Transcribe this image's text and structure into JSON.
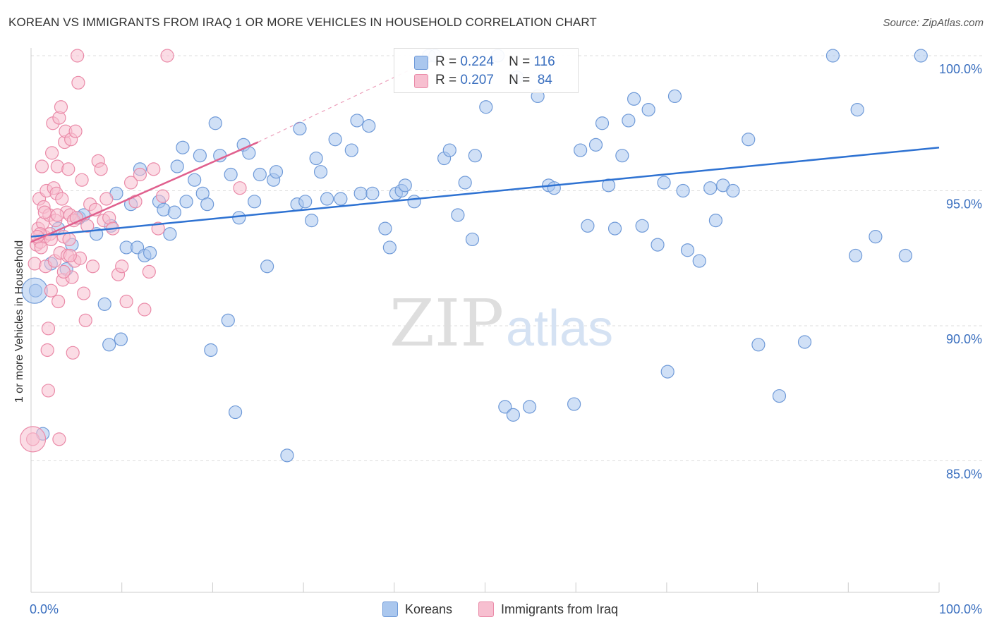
{
  "title": "KOREAN VS IMMIGRANTS FROM IRAQ 1 OR MORE VEHICLES IN HOUSEHOLD CORRELATION CHART",
  "source": "Source: ZipAtlas.com",
  "watermark": {
    "zip": "ZIP",
    "atlas": "atlas"
  },
  "legend_stats": [
    {
      "r_label": "R =",
      "r_value": "0.224",
      "n_label": "N =",
      "n_value": "116"
    },
    {
      "r_label": "R =",
      "r_value": "0.207",
      "n_label": "N =",
      "n_value": " 84"
    }
  ],
  "colors": {
    "blue_fill": "#aac7ee",
    "blue_stroke": "#6f9ad8",
    "blue_line": "#2e72d2",
    "pink_fill": "#f7bfd0",
    "pink_stroke": "#ea8aa8",
    "pink_line": "#e0608e",
    "axis_text": "#3a6fbf",
    "grid": "#dddddd"
  },
  "chart_data": {
    "type": "scatter",
    "xlabel": "",
    "ylabel": "1 or more Vehicles in Household",
    "xlim": [
      0,
      100
    ],
    "ylim": [
      80.5,
      100.6
    ],
    "x_tick_labels": {
      "0": "0.0%",
      "100": "100.0%"
    },
    "y_ticks": [
      85,
      90,
      95,
      100
    ],
    "y_tick_labels": [
      "85.0%",
      "90.0%",
      "95.0%",
      "100.0%"
    ],
    "grid": "horizontal dashed",
    "legend_placement": "bottom-center",
    "series": [
      {
        "name": "Koreans",
        "color": "#aac7ee",
        "trend": {
          "x": [
            0,
            100
          ],
          "y": [
            93.3,
            96.6
          ]
        },
        "points": [
          [
            0.5,
            91.3
          ],
          [
            1.3,
            86.0
          ],
          [
            2.2,
            92.3
          ],
          [
            3.0,
            93.6
          ],
          [
            3.9,
            92.1
          ],
          [
            5.3,
            94.0
          ],
          [
            5.8,
            94.1
          ],
          [
            7.2,
            93.4
          ],
          [
            8.1,
            90.8
          ],
          [
            8.6,
            89.3
          ],
          [
            9.4,
            94.9
          ],
          [
            9.9,
            89.5
          ],
          [
            10.5,
            92.9
          ],
          [
            11.0,
            94.5
          ],
          [
            11.7,
            92.9
          ],
          [
            12.5,
            92.6
          ],
          [
            13.1,
            92.7
          ],
          [
            14.1,
            94.6
          ],
          [
            14.6,
            94.3
          ],
          [
            15.3,
            93.4
          ],
          [
            15.8,
            94.2
          ],
          [
            16.1,
            95.9
          ],
          [
            16.7,
            96.6
          ],
          [
            17.1,
            94.6
          ],
          [
            18.0,
            95.4
          ],
          [
            18.6,
            96.3
          ],
          [
            18.9,
            94.9
          ],
          [
            19.4,
            94.5
          ],
          [
            19.8,
            89.1
          ],
          [
            20.3,
            97.5
          ],
          [
            20.8,
            96.3
          ],
          [
            21.7,
            90.2
          ],
          [
            22.0,
            95.6
          ],
          [
            22.5,
            86.8
          ],
          [
            22.9,
            94.0
          ],
          [
            23.4,
            96.7
          ],
          [
            24.0,
            96.4
          ],
          [
            24.6,
            94.6
          ],
          [
            25.2,
            95.6
          ],
          [
            26.0,
            92.2
          ],
          [
            26.7,
            95.4
          ],
          [
            27.0,
            95.7
          ],
          [
            28.2,
            85.2
          ],
          [
            29.3,
            94.5
          ],
          [
            29.6,
            97.3
          ],
          [
            30.2,
            94.6
          ],
          [
            30.9,
            93.9
          ],
          [
            31.4,
            96.2
          ],
          [
            31.9,
            95.7
          ],
          [
            32.6,
            94.7
          ],
          [
            33.5,
            96.9
          ],
          [
            34.1,
            94.7
          ],
          [
            35.3,
            96.5
          ],
          [
            35.9,
            97.6
          ],
          [
            36.3,
            94.9
          ],
          [
            37.2,
            97.4
          ],
          [
            37.6,
            94.9
          ],
          [
            39.0,
            93.6
          ],
          [
            39.5,
            92.9
          ],
          [
            40.2,
            94.9
          ],
          [
            40.8,
            95.0
          ],
          [
            41.2,
            95.2
          ],
          [
            42.2,
            94.6
          ],
          [
            43.8,
            100.0
          ],
          [
            44.5,
            100.0
          ],
          [
            45.5,
            96.2
          ],
          [
            46.1,
            96.5
          ],
          [
            47.0,
            94.1
          ],
          [
            47.8,
            95.3
          ],
          [
            48.6,
            93.2
          ],
          [
            48.9,
            96.3
          ],
          [
            50.1,
            98.1
          ],
          [
            51.4,
            100.0
          ],
          [
            52.2,
            87.0
          ],
          [
            53.1,
            86.7
          ],
          [
            53.5,
            99.2
          ],
          [
            54.9,
            87.0
          ],
          [
            55.8,
            98.5
          ],
          [
            57.0,
            95.2
          ],
          [
            57.6,
            95.1
          ],
          [
            59.8,
            87.1
          ],
          [
            60.5,
            96.5
          ],
          [
            61.3,
            93.7
          ],
          [
            62.2,
            96.7
          ],
          [
            62.9,
            97.5
          ],
          [
            63.6,
            95.2
          ],
          [
            64.3,
            93.6
          ],
          [
            65.1,
            96.3
          ],
          [
            65.8,
            97.6
          ],
          [
            66.4,
            98.4
          ],
          [
            67.3,
            93.7
          ],
          [
            68.0,
            98.0
          ],
          [
            69.0,
            93.0
          ],
          [
            69.7,
            95.3
          ],
          [
            70.1,
            88.3
          ],
          [
            70.9,
            98.5
          ],
          [
            71.8,
            95.0
          ],
          [
            72.3,
            92.8
          ],
          [
            73.6,
            92.4
          ],
          [
            74.8,
            95.1
          ],
          [
            75.4,
            93.9
          ],
          [
            76.2,
            95.2
          ],
          [
            77.3,
            95.0
          ],
          [
            79.0,
            96.9
          ],
          [
            80.1,
            89.3
          ],
          [
            82.4,
            87.4
          ],
          [
            85.2,
            89.4
          ],
          [
            88.3,
            100.0
          ],
          [
            90.8,
            92.6
          ],
          [
            91.0,
            98.0
          ],
          [
            93.0,
            93.3
          ],
          [
            96.3,
            92.6
          ],
          [
            98.0,
            100.0
          ],
          [
            4.5,
            93.0
          ],
          [
            8.8,
            93.7
          ],
          [
            12.0,
            95.8
          ]
        ],
        "big_points": [
          [
            0.4,
            91.3
          ]
        ]
      },
      {
        "name": "Immigrants from Iraq",
        "color": "#f7bfd0",
        "trend": {
          "x": [
            0,
            25
          ],
          "y": [
            93.1,
            96.8
          ],
          "dashed_to": {
            "x": 42.5,
            "y": 99.6
          }
        },
        "points": [
          [
            0.2,
            85.8
          ],
          [
            0.4,
            92.3
          ],
          [
            0.6,
            93.0
          ],
          [
            0.8,
            93.6
          ],
          [
            0.9,
            94.7
          ],
          [
            1.0,
            93.1
          ],
          [
            1.1,
            92.9
          ],
          [
            1.2,
            95.9
          ],
          [
            1.3,
            93.8
          ],
          [
            1.4,
            94.4
          ],
          [
            1.5,
            93.3
          ],
          [
            1.6,
            92.2
          ],
          [
            1.7,
            95.0
          ],
          [
            1.8,
            89.1
          ],
          [
            1.9,
            87.6
          ],
          [
            2.0,
            94.1
          ],
          [
            2.1,
            93.4
          ],
          [
            2.2,
            91.3
          ],
          [
            2.3,
            96.4
          ],
          [
            2.4,
            97.5
          ],
          [
            2.5,
            95.1
          ],
          [
            2.6,
            92.4
          ],
          [
            2.7,
            93.9
          ],
          [
            2.8,
            94.9
          ],
          [
            2.9,
            95.9
          ],
          [
            3.0,
            90.9
          ],
          [
            3.1,
            97.7
          ],
          [
            3.2,
            92.7
          ],
          [
            3.3,
            98.1
          ],
          [
            3.4,
            94.7
          ],
          [
            3.5,
            91.7
          ],
          [
            3.6,
            93.3
          ],
          [
            3.7,
            96.8
          ],
          [
            3.8,
            97.2
          ],
          [
            3.9,
            94.2
          ],
          [
            4.0,
            92.6
          ],
          [
            4.1,
            95.8
          ],
          [
            4.2,
            93.2
          ],
          [
            4.3,
            94.1
          ],
          [
            4.4,
            96.9
          ],
          [
            4.5,
            91.8
          ],
          [
            4.6,
            89.0
          ],
          [
            4.7,
            93.9
          ],
          [
            4.8,
            92.4
          ],
          [
            4.9,
            97.2
          ],
          [
            5.0,
            94.0
          ],
          [
            5.2,
            99.0
          ],
          [
            5.4,
            92.5
          ],
          [
            5.6,
            95.4
          ],
          [
            5.8,
            91.2
          ],
          [
            6.0,
            90.2
          ],
          [
            6.2,
            93.7
          ],
          [
            6.5,
            94.5
          ],
          [
            6.8,
            92.2
          ],
          [
            7.1,
            94.3
          ],
          [
            7.4,
            96.1
          ],
          [
            7.7,
            95.8
          ],
          [
            8.0,
            93.9
          ],
          [
            8.3,
            94.7
          ],
          [
            8.6,
            94.0
          ],
          [
            9.0,
            93.6
          ],
          [
            9.6,
            91.9
          ],
          [
            10.0,
            92.2
          ],
          [
            10.5,
            90.9
          ],
          [
            11.0,
            95.3
          ],
          [
            11.5,
            94.6
          ],
          [
            12.0,
            95.6
          ],
          [
            12.5,
            90.6
          ],
          [
            13.0,
            92.0
          ],
          [
            13.5,
            95.8
          ],
          [
            14.0,
            93.6
          ],
          [
            14.5,
            94.8
          ],
          [
            15.0,
            100.0
          ],
          [
            23.0,
            95.1
          ],
          [
            1.0,
            93.4
          ],
          [
            1.5,
            94.2
          ],
          [
            2.2,
            93.2
          ],
          [
            2.9,
            94.1
          ],
          [
            3.6,
            92.0
          ],
          [
            4.3,
            92.6
          ],
          [
            5.1,
            100.0
          ],
          [
            0.7,
            93.3
          ],
          [
            1.9,
            89.9
          ],
          [
            3.1,
            85.8
          ]
        ],
        "big_points": [
          [
            0.2,
            85.8
          ]
        ]
      }
    ]
  },
  "bottom_legend": [
    {
      "label": "Koreans"
    },
    {
      "label": "Immigrants from Iraq"
    }
  ]
}
